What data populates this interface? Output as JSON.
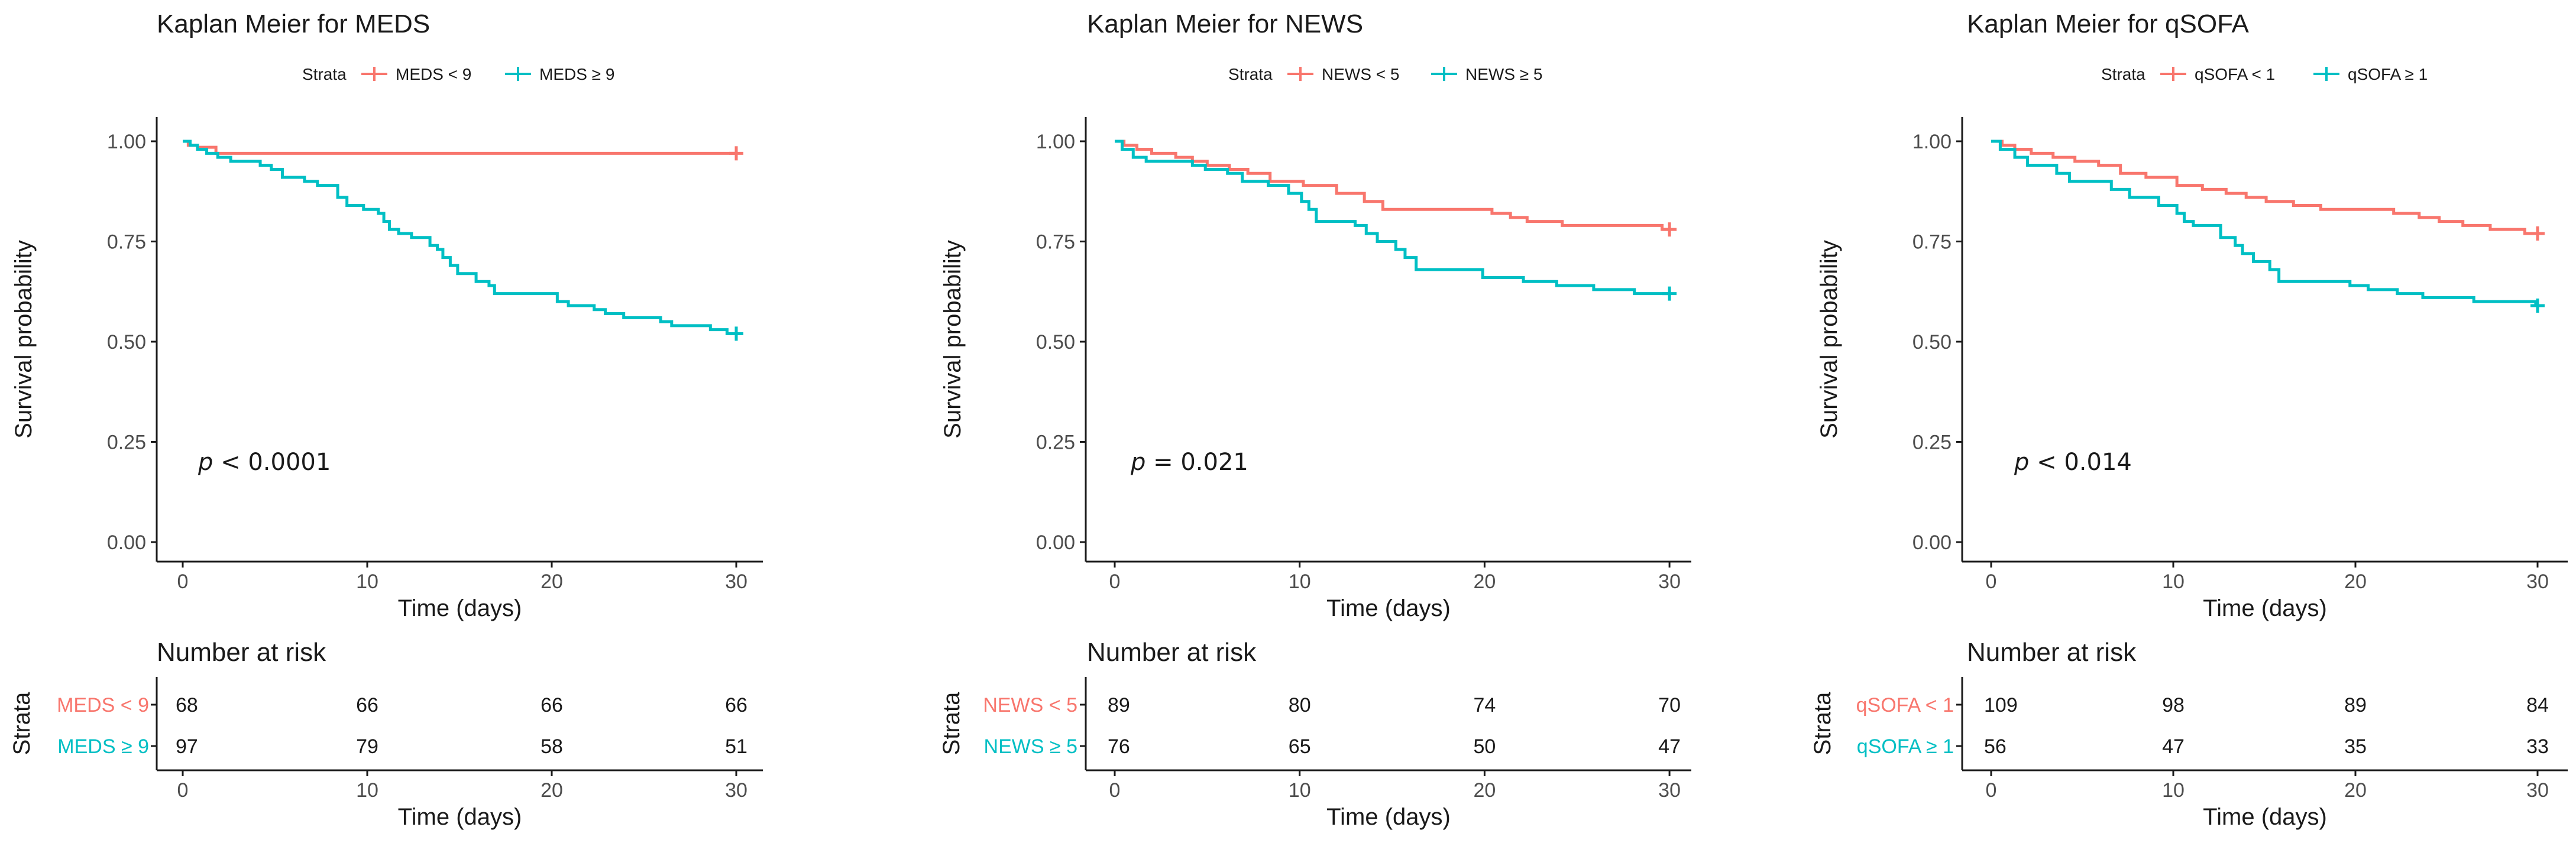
{
  "colors": {
    "low": "#f8766d",
    "high": "#00bfc4"
  },
  "chart_data": [
    {
      "type": "line",
      "subtype": "kaplan-meier",
      "title": "Kaplan Meier for MEDS",
      "legend_title": "Strata",
      "legend_position": "top",
      "xlabel": "Time (days)",
      "ylabel": "Survival probability",
      "xlim": [
        0,
        30
      ],
      "ylim": [
        0,
        1
      ],
      "xticks": [
        "0",
        "10",
        "20",
        "30"
      ],
      "yticks": [
        "0.00",
        "0.25",
        "0.50",
        "0.75",
        "1.00"
      ],
      "p_label": "p",
      "p_value": "< 0.0001",
      "series": [
        {
          "name": "MEDS < 9",
          "color": "#f8766d",
          "steps": [
            [
              0,
              1.0
            ],
            [
              0.3,
              0.99
            ],
            [
              0.8,
              0.985
            ],
            [
              1.8,
              0.97
            ],
            [
              30,
              0.97
            ]
          ]
        },
        {
          "name": "MEDS ≥ 9",
          "color": "#00bfc4",
          "steps": [
            [
              0,
              1.0
            ],
            [
              0.4,
              0.99
            ],
            [
              0.8,
              0.98
            ],
            [
              1.3,
              0.97
            ],
            [
              1.9,
              0.96
            ],
            [
              2.6,
              0.95
            ],
            [
              4.2,
              0.94
            ],
            [
              4.8,
              0.93
            ],
            [
              5.4,
              0.91
            ],
            [
              6.6,
              0.9
            ],
            [
              7.3,
              0.89
            ],
            [
              8.4,
              0.86
            ],
            [
              8.9,
              0.84
            ],
            [
              9.8,
              0.83
            ],
            [
              10.6,
              0.82
            ],
            [
              10.9,
              0.8
            ],
            [
              11.2,
              0.78
            ],
            [
              11.7,
              0.77
            ],
            [
              12.4,
              0.76
            ],
            [
              13.4,
              0.74
            ],
            [
              13.8,
              0.73
            ],
            [
              14.1,
              0.71
            ],
            [
              14.5,
              0.69
            ],
            [
              14.9,
              0.67
            ],
            [
              15.9,
              0.65
            ],
            [
              16.6,
              0.64
            ],
            [
              16.9,
              0.62
            ],
            [
              20.3,
              0.6
            ],
            [
              20.9,
              0.59
            ],
            [
              22.3,
              0.58
            ],
            [
              22.9,
              0.57
            ],
            [
              23.9,
              0.56
            ],
            [
              25.9,
              0.55
            ],
            [
              26.5,
              0.54
            ],
            [
              28.6,
              0.53
            ],
            [
              29.5,
              0.52
            ],
            [
              30,
              0.52
            ]
          ]
        }
      ],
      "risk_table": {
        "title": "Number at risk",
        "ylabel": "Strata",
        "xlabel": "Time (days)",
        "times": [
          0,
          10,
          20,
          30
        ],
        "rows": [
          {
            "label": "MEDS < 9",
            "color": "#f8766d",
            "values": [
              "68",
              "66",
              "66",
              "66"
            ]
          },
          {
            "label": "MEDS ≥  9",
            "color": "#00bfc4",
            "values": [
              "97",
              "79",
              "58",
              "51"
            ]
          }
        ]
      }
    },
    {
      "type": "line",
      "subtype": "kaplan-meier",
      "title": "Kaplan Meier for NEWS",
      "legend_title": "Strata",
      "legend_position": "top",
      "xlabel": "Time (days)",
      "ylabel": "Survival probability",
      "xlim": [
        0,
        30
      ],
      "ylim": [
        0,
        1
      ],
      "xticks": [
        "0",
        "10",
        "20",
        "30"
      ],
      "yticks": [
        "0.00",
        "0.25",
        "0.50",
        "0.75",
        "1.00"
      ],
      "p_label": "p",
      "p_value": "= 0.021",
      "series": [
        {
          "name": "NEWS < 5",
          "color": "#f8766d",
          "steps": [
            [
              0,
              1.0
            ],
            [
              0.5,
              0.99
            ],
            [
              1.2,
              0.98
            ],
            [
              2.0,
              0.97
            ],
            [
              3.3,
              0.96
            ],
            [
              4.2,
              0.95
            ],
            [
              5.0,
              0.94
            ],
            [
              6.2,
              0.93
            ],
            [
              7.2,
              0.92
            ],
            [
              8.4,
              0.9
            ],
            [
              10.2,
              0.89
            ],
            [
              12.0,
              0.87
            ],
            [
              13.5,
              0.85
            ],
            [
              14.5,
              0.83
            ],
            [
              20.4,
              0.82
            ],
            [
              21.4,
              0.81
            ],
            [
              22.3,
              0.8
            ],
            [
              24.2,
              0.79
            ],
            [
              29.6,
              0.78
            ],
            [
              30,
              0.78
            ]
          ]
        },
        {
          "name": "NEWS ≥ 5",
          "color": "#00bfc4",
          "steps": [
            [
              0,
              1.0
            ],
            [
              0.4,
              0.98
            ],
            [
              1.0,
              0.96
            ],
            [
              1.7,
              0.95
            ],
            [
              4.2,
              0.94
            ],
            [
              4.9,
              0.93
            ],
            [
              6.1,
              0.92
            ],
            [
              6.9,
              0.9
            ],
            [
              8.3,
              0.89
            ],
            [
              9.4,
              0.87
            ],
            [
              10.1,
              0.85
            ],
            [
              10.5,
              0.83
            ],
            [
              10.9,
              0.8
            ],
            [
              13.0,
              0.79
            ],
            [
              13.6,
              0.77
            ],
            [
              14.2,
              0.75
            ],
            [
              15.2,
              0.73
            ],
            [
              15.7,
              0.71
            ],
            [
              16.3,
              0.68
            ],
            [
              19.9,
              0.66
            ],
            [
              22.1,
              0.65
            ],
            [
              23.9,
              0.64
            ],
            [
              25.9,
              0.63
            ],
            [
              28.1,
              0.62
            ],
            [
              30,
              0.62
            ]
          ]
        }
      ],
      "risk_table": {
        "title": "Number at risk",
        "ylabel": "Strata",
        "xlabel": "Time (days)",
        "times": [
          0,
          10,
          20,
          30
        ],
        "rows": [
          {
            "label": "NEWS < 5",
            "color": "#f8766d",
            "values": [
              "89",
              "80",
              "74",
              "70"
            ]
          },
          {
            "label": "NEWS ≥  5",
            "color": "#00bfc4",
            "values": [
              "76",
              "65",
              "50",
              "47"
            ]
          }
        ]
      }
    },
    {
      "type": "line",
      "subtype": "kaplan-meier",
      "title": "Kaplan Meier for qSOFA",
      "legend_title": "Strata",
      "legend_position": "top",
      "xlabel": "Time (days)",
      "ylabel": "Survival probability",
      "xlim": [
        0,
        30
      ],
      "ylim": [
        0,
        1
      ],
      "xticks": [
        "0",
        "10",
        "20",
        "30"
      ],
      "yticks": [
        "0.00",
        "0.25",
        "0.50",
        "0.75",
        "1.00"
      ],
      "p_label": "p",
      "p_value": "< 0.014",
      "series": [
        {
          "name": "qSOFA < 1",
          "color": "#f8766d",
          "steps": [
            [
              0,
              1.0
            ],
            [
              0.6,
              0.99
            ],
            [
              1.3,
              0.98
            ],
            [
              2.2,
              0.97
            ],
            [
              3.4,
              0.96
            ],
            [
              4.6,
              0.95
            ],
            [
              5.9,
              0.94
            ],
            [
              7.1,
              0.92
            ],
            [
              8.5,
              0.91
            ],
            [
              10.2,
              0.89
            ],
            [
              11.6,
              0.88
            ],
            [
              12.9,
              0.87
            ],
            [
              14.0,
              0.86
            ],
            [
              15.1,
              0.85
            ],
            [
              16.6,
              0.84
            ],
            [
              18.1,
              0.83
            ],
            [
              22.1,
              0.82
            ],
            [
              23.5,
              0.81
            ],
            [
              24.6,
              0.8
            ],
            [
              25.9,
              0.79
            ],
            [
              27.4,
              0.78
            ],
            [
              29.3,
              0.77
            ],
            [
              30,
              0.77
            ]
          ]
        },
        {
          "name": "qSOFA ≥ 1",
          "color": "#00bfc4",
          "steps": [
            [
              0,
              1.0
            ],
            [
              0.5,
              0.98
            ],
            [
              1.3,
              0.96
            ],
            [
              2.0,
              0.94
            ],
            [
              3.6,
              0.92
            ],
            [
              4.3,
              0.9
            ],
            [
              6.6,
              0.88
            ],
            [
              7.6,
              0.86
            ],
            [
              9.2,
              0.84
            ],
            [
              10.2,
              0.82
            ],
            [
              10.6,
              0.8
            ],
            [
              11.1,
              0.79
            ],
            [
              12.6,
              0.76
            ],
            [
              13.4,
              0.74
            ],
            [
              13.8,
              0.72
            ],
            [
              14.4,
              0.7
            ],
            [
              15.3,
              0.68
            ],
            [
              15.8,
              0.65
            ],
            [
              19.7,
              0.64
            ],
            [
              20.7,
              0.63
            ],
            [
              22.3,
              0.62
            ],
            [
              23.7,
              0.61
            ],
            [
              26.5,
              0.6
            ],
            [
              29.9,
              0.59
            ],
            [
              30,
              0.59
            ]
          ]
        }
      ],
      "risk_table": {
        "title": "Number at risk",
        "ylabel": "Strata",
        "xlabel": "Time (days)",
        "times": [
          0,
          10,
          20,
          30
        ],
        "rows": [
          {
            "label": "qSOFA < 1",
            "color": "#f8766d",
            "values": [
              "109",
              "98",
              "89",
              "84"
            ]
          },
          {
            "label": "qSOFA ≥  1",
            "color": "#00bfc4",
            "values": [
              "56",
              "47",
              "35",
              "33"
            ]
          }
        ]
      }
    }
  ]
}
